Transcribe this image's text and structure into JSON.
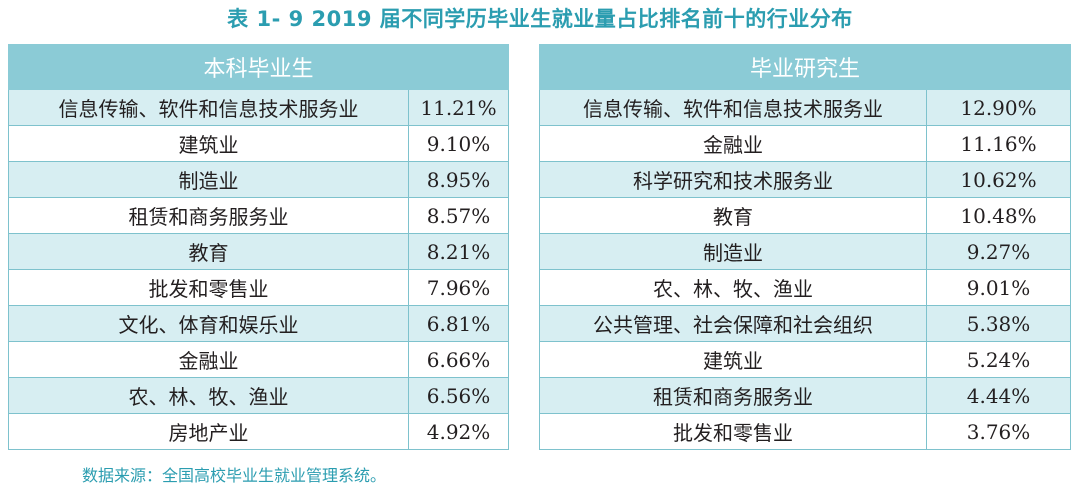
{
  "title": "表 1- 9    2019 届不同学历毕业生就业量占比排名前十的行业分布",
  "undergraduate": {
    "header": "本科毕业生",
    "rows": [
      {
        "industry": "信息传输、软件和信息技术服务业",
        "share": "11.21%"
      },
      {
        "industry": "建筑业",
        "share": "9.10%"
      },
      {
        "industry": "制造业",
        "share": "8.95%"
      },
      {
        "industry": "租赁和商务服务业",
        "share": "8.57%"
      },
      {
        "industry": "教育",
        "share": "8.21%"
      },
      {
        "industry": "批发和零售业",
        "share": "7.96%"
      },
      {
        "industry": "文化、体育和娱乐业",
        "share": "6.81%"
      },
      {
        "industry": "金融业",
        "share": "6.66%"
      },
      {
        "industry": "农、林、牧、渔业",
        "share": "6.56%"
      },
      {
        "industry": "房地产业",
        "share": "4.92%"
      }
    ]
  },
  "graduate": {
    "header": "毕业研究生",
    "rows": [
      {
        "industry": "信息传输、软件和信息技术服务业",
        "share": "12.90%"
      },
      {
        "industry": "金融业",
        "share": "11.16%"
      },
      {
        "industry": "科学研究和技术服务业",
        "share": "10.62%"
      },
      {
        "industry": "教育",
        "share": "10.48%"
      },
      {
        "industry": "制造业",
        "share": "9.27%"
      },
      {
        "industry": "农、林、牧、渔业",
        "share": "9.01%"
      },
      {
        "industry": "公共管理、社会保障和社会组织",
        "share": "5.38%"
      },
      {
        "industry": "建筑业",
        "share": "5.24%"
      },
      {
        "industry": "租赁和商务服务业",
        "share": "4.44%"
      },
      {
        "industry": "批发和零售业",
        "share": "3.76%"
      }
    ]
  },
  "source": "数据来源：全国高校毕业生就业管理系统。"
}
